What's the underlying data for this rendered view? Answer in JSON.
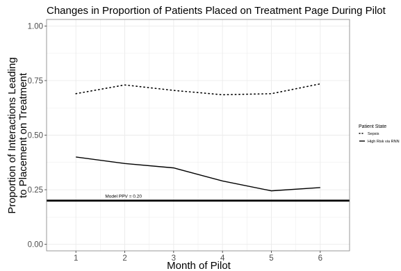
{
  "chart_data": {
    "type": "line",
    "title": "Changes in Proportion of Patients Placed on Treatment Page During Pilot",
    "xlabel": "Month of Pilot",
    "ylabel_lines": [
      "Proportion of Interactions Leading",
      "to Placement on Treatment"
    ],
    "xlim": [
      0.4,
      6.6
    ],
    "ylim": [
      -0.03,
      1.03
    ],
    "x_ticks": [
      1,
      2,
      3,
      4,
      5,
      6
    ],
    "y_ticks": [
      0,
      0.25,
      0.5,
      0.75,
      1
    ],
    "y_tick_labels": [
      "0.00",
      "0.25",
      "0.50",
      "0.75",
      "1.00"
    ],
    "grid": true,
    "legend_position": "right",
    "legend_title": "Patient State",
    "series": [
      {
        "name": "Sepsis",
        "style": "dotted",
        "x": [
          1,
          2,
          3,
          4,
          5,
          6
        ],
        "values": [
          0.69,
          0.73,
          0.705,
          0.685,
          0.69,
          0.735
        ]
      },
      {
        "name": "High Risk via RNN",
        "style": "solid",
        "x": [
          1,
          2,
          3,
          4,
          5,
          6
        ],
        "values": [
          0.4,
          0.37,
          0.35,
          0.29,
          0.245,
          0.26
        ]
      }
    ],
    "reference_line": {
      "y": 0.2,
      "label": "Model PPV = 0.20",
      "label_x": 1.6
    },
    "colors": {
      "line": "#000000",
      "grid": "#ebebeb",
      "panel_border": "#7f7f7f"
    }
  }
}
